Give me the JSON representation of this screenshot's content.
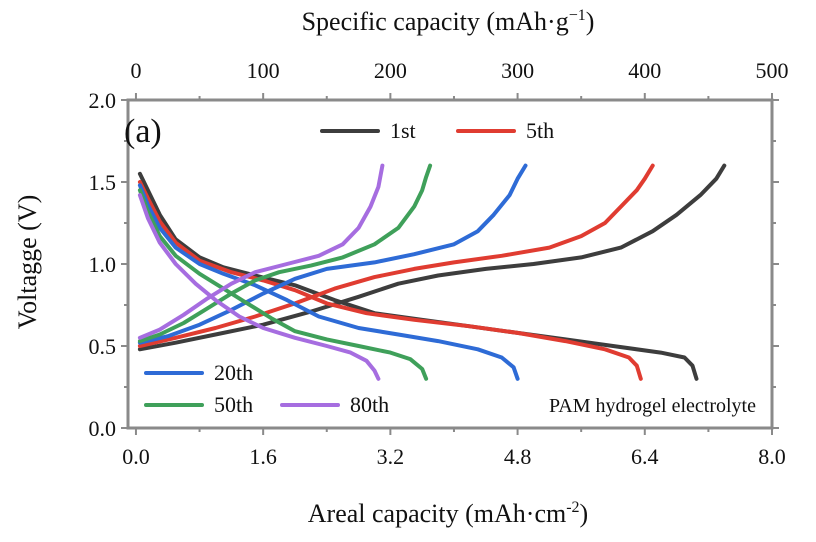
{
  "chart_data": {
    "type": "line",
    "panel_label": "(a)",
    "xlabel_bottom": {
      "main": "Areal capacity (mAh·cm",
      "sup": "-2",
      "end": ")"
    },
    "xlabel_top": {
      "main": "Specific capacity (mAh·g",
      "sup": "−1",
      "end": ")"
    },
    "ylabel": "Voltagge (V)",
    "annotation": "PAM hydrogel electrolyte",
    "xlim": [
      -0.1,
      8.0
    ],
    "ylim": [
      0.0,
      2.0
    ],
    "x_top_lim": [
      -6.25,
      500
    ],
    "x_ticks": [
      0.0,
      1.6,
      3.2,
      4.8,
      6.4,
      8.0
    ],
    "x_tick_labels": [
      "0.0",
      "1.6",
      "3.2",
      "4.8",
      "6.4",
      "8.0"
    ],
    "x_top_ticks": [
      0,
      100,
      200,
      300,
      400,
      500
    ],
    "x_top_tick_labels": [
      "0",
      "100",
      "200",
      "300",
      "400",
      "500"
    ],
    "y_ticks": [
      0.0,
      0.5,
      1.0,
      1.5,
      2.0
    ],
    "y_tick_labels": [
      "0.0",
      "0.5",
      "1.0",
      "1.5",
      "2.0"
    ],
    "grid": false,
    "legend_placement": "top and bottom-left, inside plot",
    "series": [
      {
        "name": "1st",
        "color": "#3d3d3d",
        "discharge": [
          [
            0.05,
            1.55
          ],
          [
            0.15,
            1.45
          ],
          [
            0.3,
            1.3
          ],
          [
            0.5,
            1.15
          ],
          [
            0.8,
            1.04
          ],
          [
            1.1,
            0.98
          ],
          [
            1.5,
            0.93
          ],
          [
            2.0,
            0.87
          ],
          [
            2.5,
            0.78
          ],
          [
            3.0,
            0.7
          ],
          [
            3.6,
            0.66
          ],
          [
            4.2,
            0.62
          ],
          [
            4.8,
            0.58
          ],
          [
            5.4,
            0.54
          ],
          [
            6.0,
            0.5
          ],
          [
            6.6,
            0.46
          ],
          [
            6.9,
            0.43
          ],
          [
            7.0,
            0.38
          ],
          [
            7.05,
            0.3
          ]
        ],
        "charge": [
          [
            0.05,
            0.48
          ],
          [
            0.5,
            0.52
          ],
          [
            1.0,
            0.57
          ],
          [
            1.6,
            0.63
          ],
          [
            2.2,
            0.71
          ],
          [
            2.8,
            0.8
          ],
          [
            3.3,
            0.88
          ],
          [
            3.8,
            0.93
          ],
          [
            4.4,
            0.97
          ],
          [
            5.0,
            1.0
          ],
          [
            5.6,
            1.04
          ],
          [
            6.1,
            1.1
          ],
          [
            6.5,
            1.2
          ],
          [
            6.8,
            1.3
          ],
          [
            7.1,
            1.42
          ],
          [
            7.3,
            1.52
          ],
          [
            7.4,
            1.6
          ]
        ]
      },
      {
        "name": "5th",
        "color": "#e03c31",
        "discharge": [
          [
            0.05,
            1.5
          ],
          [
            0.15,
            1.4
          ],
          [
            0.3,
            1.26
          ],
          [
            0.5,
            1.13
          ],
          [
            0.8,
            1.02
          ],
          [
            1.2,
            0.95
          ],
          [
            1.6,
            0.9
          ],
          [
            2.0,
            0.84
          ],
          [
            2.4,
            0.76
          ],
          [
            2.9,
            0.7
          ],
          [
            3.5,
            0.66
          ],
          [
            4.2,
            0.62
          ],
          [
            4.8,
            0.58
          ],
          [
            5.4,
            0.53
          ],
          [
            5.9,
            0.48
          ],
          [
            6.2,
            0.43
          ],
          [
            6.3,
            0.38
          ],
          [
            6.35,
            0.3
          ]
        ],
        "charge": [
          [
            0.05,
            0.5
          ],
          [
            0.5,
            0.55
          ],
          [
            1.0,
            0.61
          ],
          [
            1.5,
            0.68
          ],
          [
            2.0,
            0.76
          ],
          [
            2.5,
            0.85
          ],
          [
            3.0,
            0.92
          ],
          [
            3.5,
            0.97
          ],
          [
            4.0,
            1.01
          ],
          [
            4.6,
            1.05
          ],
          [
            5.2,
            1.1
          ],
          [
            5.6,
            1.17
          ],
          [
            5.9,
            1.25
          ],
          [
            6.1,
            1.35
          ],
          [
            6.3,
            1.45
          ],
          [
            6.4,
            1.52
          ],
          [
            6.5,
            1.6
          ]
        ]
      },
      {
        "name": "20th",
        "color": "#2e6bd6",
        "discharge": [
          [
            0.05,
            1.48
          ],
          [
            0.15,
            1.36
          ],
          [
            0.3,
            1.22
          ],
          [
            0.5,
            1.1
          ],
          [
            0.8,
            1.0
          ],
          [
            1.1,
            0.94
          ],
          [
            1.5,
            0.87
          ],
          [
            1.9,
            0.78
          ],
          [
            2.3,
            0.68
          ],
          [
            2.8,
            0.61
          ],
          [
            3.3,
            0.57
          ],
          [
            3.8,
            0.53
          ],
          [
            4.3,
            0.48
          ],
          [
            4.6,
            0.43
          ],
          [
            4.75,
            0.37
          ],
          [
            4.8,
            0.3
          ]
        ],
        "charge": [
          [
            0.05,
            0.52
          ],
          [
            0.4,
            0.56
          ],
          [
            0.8,
            0.63
          ],
          [
            1.2,
            0.72
          ],
          [
            1.6,
            0.82
          ],
          [
            2.0,
            0.91
          ],
          [
            2.4,
            0.97
          ],
          [
            3.0,
            1.01
          ],
          [
            3.5,
            1.06
          ],
          [
            4.0,
            1.12
          ],
          [
            4.3,
            1.2
          ],
          [
            4.5,
            1.3
          ],
          [
            4.7,
            1.42
          ],
          [
            4.8,
            1.52
          ],
          [
            4.9,
            1.6
          ]
        ]
      },
      {
        "name": "50th",
        "color": "#3fa05a",
        "discharge": [
          [
            0.05,
            1.45
          ],
          [
            0.15,
            1.32
          ],
          [
            0.3,
            1.17
          ],
          [
            0.5,
            1.05
          ],
          [
            0.8,
            0.94
          ],
          [
            1.1,
            0.85
          ],
          [
            1.4,
            0.76
          ],
          [
            1.7,
            0.67
          ],
          [
            2.0,
            0.59
          ],
          [
            2.4,
            0.54
          ],
          [
            2.8,
            0.5
          ],
          [
            3.2,
            0.46
          ],
          [
            3.45,
            0.42
          ],
          [
            3.6,
            0.36
          ],
          [
            3.65,
            0.3
          ]
        ],
        "charge": [
          [
            0.05,
            0.53
          ],
          [
            0.3,
            0.57
          ],
          [
            0.6,
            0.64
          ],
          [
            0.9,
            0.73
          ],
          [
            1.2,
            0.82
          ],
          [
            1.5,
            0.9
          ],
          [
            1.8,
            0.95
          ],
          [
            2.2,
            0.99
          ],
          [
            2.6,
            1.04
          ],
          [
            3.0,
            1.12
          ],
          [
            3.3,
            1.22
          ],
          [
            3.5,
            1.35
          ],
          [
            3.6,
            1.45
          ],
          [
            3.65,
            1.53
          ],
          [
            3.7,
            1.6
          ]
        ]
      },
      {
        "name": "80th",
        "color": "#a66de0",
        "discharge": [
          [
            0.05,
            1.42
          ],
          [
            0.15,
            1.28
          ],
          [
            0.3,
            1.13
          ],
          [
            0.5,
            1.0
          ],
          [
            0.75,
            0.88
          ],
          [
            1.0,
            0.78
          ],
          [
            1.3,
            0.68
          ],
          [
            1.6,
            0.61
          ],
          [
            2.0,
            0.55
          ],
          [
            2.4,
            0.5
          ],
          [
            2.7,
            0.46
          ],
          [
            2.9,
            0.41
          ],
          [
            3.0,
            0.35
          ],
          [
            3.05,
            0.3
          ]
        ],
        "charge": [
          [
            0.05,
            0.55
          ],
          [
            0.3,
            0.6
          ],
          [
            0.6,
            0.69
          ],
          [
            0.9,
            0.79
          ],
          [
            1.2,
            0.88
          ],
          [
            1.5,
            0.95
          ],
          [
            1.9,
            1.0
          ],
          [
            2.3,
            1.05
          ],
          [
            2.6,
            1.12
          ],
          [
            2.8,
            1.22
          ],
          [
            2.95,
            1.35
          ],
          [
            3.05,
            1.47
          ],
          [
            3.1,
            1.6
          ]
        ]
      }
    ]
  }
}
